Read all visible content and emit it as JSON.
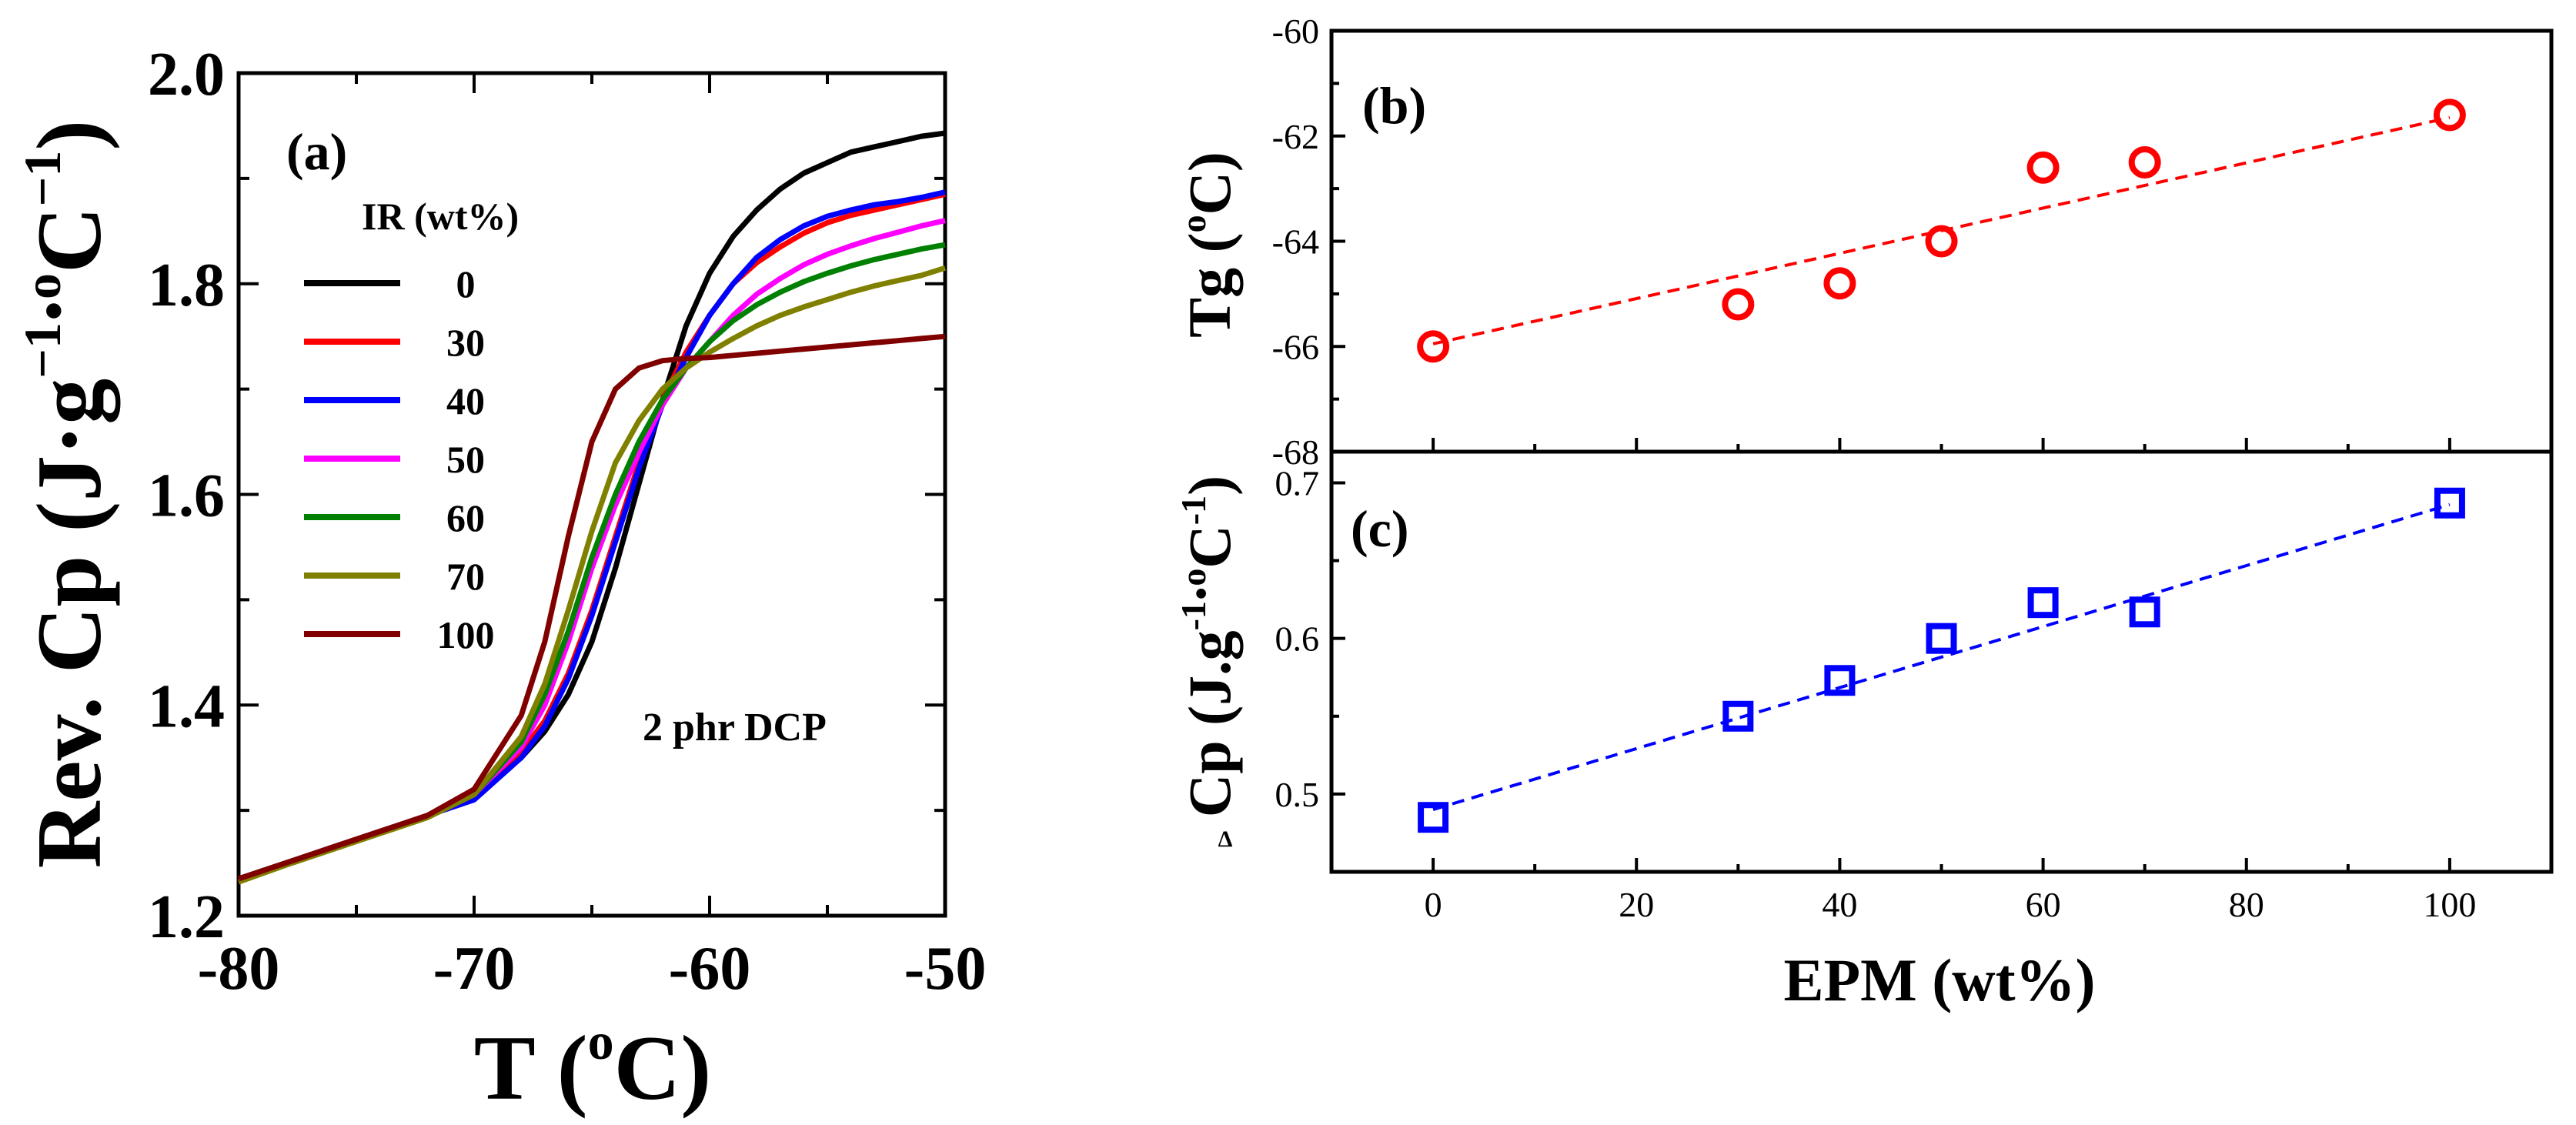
{
  "chart_data": [
    {
      "panel": "(a)",
      "type": "line",
      "xlabel_main": "T (",
      "xlabel_sup": "o",
      "xlabel_end": "C)",
      "ylabel_main": "Rev. Cp (J·g",
      "ylabel_sup1": "−1",
      "ylabel_mid": ".",
      "ylabel_sup2": "o",
      "ylabel_mid2": "C",
      "ylabel_sup3": "−1",
      "ylabel_end": ")",
      "xlim": [
        -80,
        -50
      ],
      "ylim": [
        1.2,
        2.0
      ],
      "xticks": [
        -80,
        -70,
        -60,
        -50
      ],
      "xtick_labels": [
        "-80",
        "-70",
        "-60",
        "-50"
      ],
      "yticks": [
        1.2,
        1.4,
        1.6,
        1.8,
        2.0
      ],
      "ytick_labels": [
        "1.2",
        "1.4",
        "1.6",
        "1.8",
        "2.0"
      ],
      "legend_title": "IR (wt%)",
      "annotation": "2 phr DCP",
      "series": [
        {
          "name": "0",
          "color": "#000000",
          "x": [
            -80,
            -78,
            -76,
            -74,
            -72,
            -70,
            -68,
            -67,
            -66,
            -65,
            -64,
            -63,
            -62,
            -61,
            -60,
            -59,
            -58,
            -57,
            -56,
            -55,
            -54,
            -53,
            -52,
            -51,
            -50
          ],
          "y": [
            1.235,
            1.25,
            1.265,
            1.28,
            1.295,
            1.315,
            1.35,
            1.375,
            1.41,
            1.46,
            1.53,
            1.61,
            1.69,
            1.76,
            1.81,
            1.845,
            1.87,
            1.89,
            1.905,
            1.915,
            1.925,
            1.93,
            1.935,
            1.94,
            1.943
          ]
        },
        {
          "name": "30",
          "color": "#ff0000",
          "x": [
            -80,
            -78,
            -76,
            -74,
            -72,
            -70,
            -68,
            -67,
            -66,
            -65,
            -64,
            -63,
            -62,
            -61,
            -60,
            -59,
            -58,
            -57,
            -56,
            -55,
            -54,
            -53,
            -52,
            -51,
            -50
          ],
          "y": [
            1.235,
            1.25,
            1.265,
            1.28,
            1.295,
            1.315,
            1.355,
            1.385,
            1.43,
            1.49,
            1.56,
            1.63,
            1.69,
            1.735,
            1.77,
            1.8,
            1.82,
            1.835,
            1.848,
            1.858,
            1.865,
            1.87,
            1.875,
            1.88,
            1.885
          ]
        },
        {
          "name": "40",
          "color": "#0000ff",
          "x": [
            -80,
            -78,
            -76,
            -74,
            -72,
            -70,
            -68,
            -67,
            -66,
            -65,
            -64,
            -63,
            -62,
            -61,
            -60,
            -59,
            -58,
            -57,
            -56,
            -55,
            -54,
            -53,
            -52,
            -51,
            -50
          ],
          "y": [
            1.235,
            1.25,
            1.265,
            1.28,
            1.295,
            1.31,
            1.35,
            1.38,
            1.425,
            1.485,
            1.555,
            1.625,
            1.685,
            1.73,
            1.77,
            1.8,
            1.825,
            1.842,
            1.855,
            1.864,
            1.87,
            1.875,
            1.878,
            1.882,
            1.887
          ]
        },
        {
          "name": "50",
          "color": "#ff00ff",
          "x": [
            -80,
            -78,
            -76,
            -74,
            -72,
            -70,
            -68,
            -67,
            -66,
            -65,
            -64,
            -63,
            -62,
            -61,
            -60,
            -59,
            -58,
            -57,
            -56,
            -55,
            -54,
            -53,
            -52,
            -51,
            -50
          ],
          "y": [
            1.235,
            1.25,
            1.265,
            1.28,
            1.295,
            1.315,
            1.36,
            1.4,
            1.46,
            1.53,
            1.59,
            1.64,
            1.685,
            1.72,
            1.745,
            1.77,
            1.79,
            1.805,
            1.818,
            1.828,
            1.836,
            1.843,
            1.849,
            1.855,
            1.86
          ]
        },
        {
          "name": "60",
          "color": "#008000",
          "x": [
            -80,
            -78,
            -76,
            -74,
            -72,
            -70,
            -68,
            -67,
            -66,
            -65,
            -64,
            -63,
            -62,
            -61,
            -60,
            -59,
            -58,
            -57,
            -56,
            -55,
            -54,
            -53,
            -52,
            -51,
            -50
          ],
          "y": [
            1.235,
            1.25,
            1.265,
            1.28,
            1.295,
            1.315,
            1.365,
            1.41,
            1.47,
            1.54,
            1.6,
            1.65,
            1.69,
            1.72,
            1.745,
            1.765,
            1.78,
            1.792,
            1.802,
            1.81,
            1.817,
            1.823,
            1.828,
            1.833,
            1.837
          ]
        },
        {
          "name": "70",
          "color": "#808000",
          "x": [
            -80,
            -78,
            -76,
            -74,
            -72,
            -70,
            -68,
            -67,
            -66,
            -65,
            -64,
            -63,
            -62,
            -61,
            -60,
            -59,
            -58,
            -57,
            -56,
            -55,
            -54,
            -53,
            -52,
            -51,
            -50
          ],
          "y": [
            1.232,
            1.248,
            1.263,
            1.278,
            1.293,
            1.315,
            1.37,
            1.42,
            1.49,
            1.565,
            1.63,
            1.67,
            1.7,
            1.72,
            1.735,
            1.748,
            1.76,
            1.77,
            1.778,
            1.785,
            1.792,
            1.798,
            1.803,
            1.808,
            1.815
          ]
        },
        {
          "name": "100",
          "color": "#800000",
          "x": [
            -80,
            -78,
            -76,
            -74,
            -72,
            -70,
            -68,
            -67,
            -66,
            -65,
            -64,
            -63,
            -62,
            -61,
            -60,
            -59,
            -58,
            -57,
            -56,
            -55,
            -54,
            -53,
            -52,
            -51,
            -50
          ],
          "y": [
            1.235,
            1.25,
            1.265,
            1.28,
            1.295,
            1.32,
            1.39,
            1.46,
            1.56,
            1.65,
            1.7,
            1.72,
            1.727,
            1.729,
            1.73,
            1.732,
            1.734,
            1.736,
            1.738,
            1.74,
            1.742,
            1.744,
            1.746,
            1.748,
            1.75
          ]
        }
      ]
    },
    {
      "panel": "(b)",
      "type": "scatter",
      "ylabel_main": "Tg (",
      "ylabel_sup": "o",
      "ylabel_end": "C)",
      "xlim": [
        -10,
        110
      ],
      "ylim": [
        -68,
        -60
      ],
      "yticks": [
        -68,
        -66,
        -64,
        -62,
        -60
      ],
      "ytick_labels": [
        "-68",
        "-66",
        "-64",
        "-62",
        "-60"
      ],
      "marker": "circle",
      "color": "#ff0000",
      "x": [
        0,
        30,
        40,
        50,
        60,
        70,
        100
      ],
      "y": [
        -66.0,
        -65.2,
        -64.8,
        -64.0,
        -62.6,
        -62.5,
        -61.6
      ],
      "fit": {
        "x": [
          0,
          100
        ],
        "y": [
          -65.95,
          -61.65
        ]
      }
    },
    {
      "panel": "(c)",
      "type": "scatter",
      "xlabel": "EPM (wt%)",
      "ylabel_main": "Cp (J.g",
      "ylabel_sup1": "-1",
      "ylabel_mid": ".",
      "ylabel_sup2": "o",
      "ylabel_mid2": "C",
      "ylabel_sup3": "-1",
      "ylabel_end": ")",
      "ylabel_prefix": "Δ",
      "xlim": [
        -10,
        110
      ],
      "ylim": [
        0.45,
        0.72
      ],
      "xticks": [
        0,
        20,
        40,
        60,
        80,
        100
      ],
      "xtick_labels": [
        "0",
        "20",
        "40",
        "60",
        "80",
        "100"
      ],
      "yticks": [
        0.5,
        0.6,
        0.7
      ],
      "ytick_labels": [
        "0.5",
        "0.6",
        "0.7"
      ],
      "marker": "square",
      "color": "#0000ff",
      "x": [
        0,
        30,
        40,
        50,
        60,
        70,
        100
      ],
      "y": [
        0.485,
        0.55,
        0.573,
        0.6,
        0.623,
        0.617,
        0.687
      ],
      "fit": {
        "x": [
          0,
          100
        ],
        "y": [
          0.49,
          0.686
        ]
      }
    }
  ]
}
